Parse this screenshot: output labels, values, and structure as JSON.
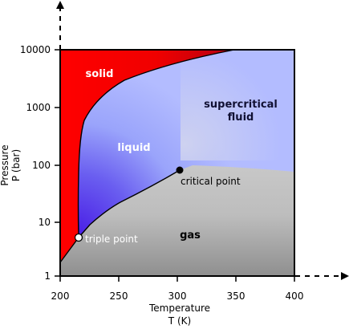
{
  "diagram": {
    "type": "phase-diagram",
    "x_axis": {
      "label_line1": "Temperature",
      "label_line2": "T (K)",
      "ticks": [
        "200",
        "250",
        "300",
        "350",
        "400"
      ],
      "range": [
        200,
        400
      ],
      "scale": "linear"
    },
    "y_axis": {
      "label_line1": "Pressure",
      "label_line2": "P (bar)",
      "ticks": [
        "1",
        "10",
        "100",
        "1000",
        "10000"
      ],
      "range": [
        1,
        10000
      ],
      "scale": "log"
    },
    "regions": {
      "solid": "solid",
      "liquid": "liquid",
      "supercritical_line1": "supercritical",
      "supercritical_line2": "fluid",
      "gas": "gas"
    },
    "points": {
      "triple": {
        "label": "triple point",
        "T": 216.6,
        "P": 5.2
      },
      "critical": {
        "label": "critical point",
        "T": 304.2,
        "P": 73.8
      }
    },
    "colors": {
      "solid": "#ff0000",
      "liquid": "#5522ee",
      "supercritical": "#aab6ff",
      "gas": "#a5a5a5",
      "axis": "#000000"
    }
  }
}
